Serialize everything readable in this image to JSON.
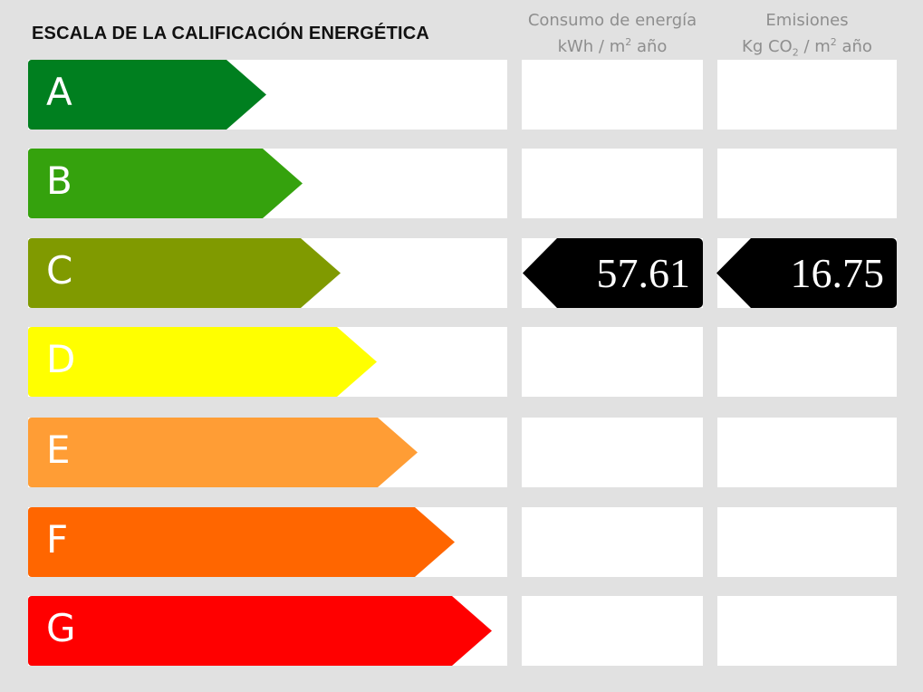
{
  "title": "ESCALA DE LA CALIFICACIÓN ENERGÉTICA",
  "columns": {
    "energy": {
      "line1": "Consumo de energía",
      "line2_pre": "kWh / m",
      "line2_sup": "2",
      "line2_post": " año"
    },
    "emissions": {
      "line1": "Emisiones",
      "line2_pre": "Kg CO",
      "line2_sub": "2",
      "line2_mid": " / m",
      "line2_sup": "2",
      "line2_post": " año"
    }
  },
  "ratings": [
    {
      "letter": "A",
      "color": "#007f1f"
    },
    {
      "letter": "B",
      "color": "#35a20d"
    },
    {
      "letter": "C",
      "color": "#809a00"
    },
    {
      "letter": "D",
      "color": "#ffff00"
    },
    {
      "letter": "E",
      "color": "#ff9d35"
    },
    {
      "letter": "F",
      "color": "#ff6600"
    },
    {
      "letter": "G",
      "color": "#ff0000"
    }
  ],
  "result": {
    "rating": "C",
    "energy_value": "57.61",
    "emissions_value": "16.75"
  }
}
